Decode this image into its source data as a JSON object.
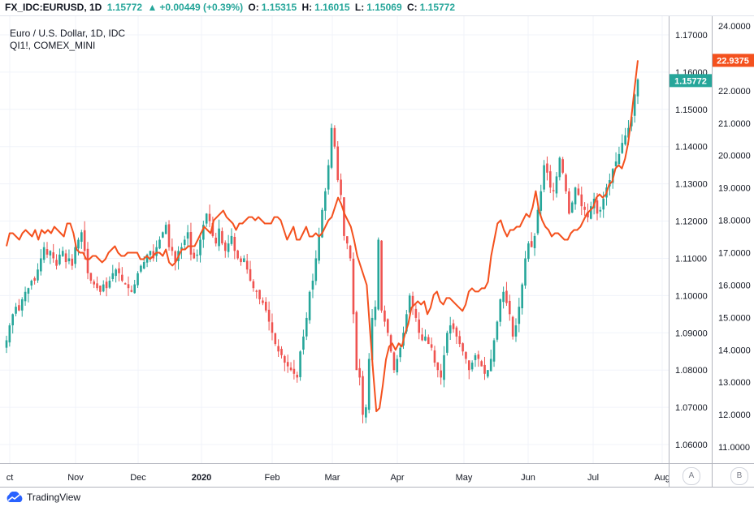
{
  "header": {
    "symbol": "FX_IDC:EURUSD, 1D",
    "last": "1.15772",
    "arrow": "▲",
    "change": "+0.00449 (+0.39%)",
    "o_label": "O:",
    "o_value": "1.15315",
    "h_label": "H:",
    "h_value": "1.16015",
    "l_label": "L:",
    "l_value": "1.15069",
    "c_label": "C:",
    "c_value": "1.15772"
  },
  "legend": {
    "line1": "Euro / U.S. Dollar, 1D, IDC",
    "line2": "QI1!, COMEX_MINI"
  },
  "footer": {
    "brand": "TradingView"
  },
  "scale_buttons": {
    "a": "A",
    "b": "B"
  },
  "colors": {
    "up": "#26a69a",
    "down": "#ef5350",
    "silver_line": "#f4511e",
    "eur_label_bg": "#26a69a",
    "silver_label_bg": "#f4511e",
    "grid": "#f0f3fa",
    "axis": "#b2b5be"
  },
  "chart_data": {
    "type": "candlestick",
    "x_axis": {
      "labels": [
        "ct",
        "Nov",
        "Dec",
        "2020",
        "Feb",
        "Mar",
        "Apr",
        "May",
        "Jun",
        "Jul",
        "Aug"
      ],
      "bold": [
        "2020"
      ]
    },
    "left_axis": {
      "name": "EURUSD",
      "range": [
        1.055,
        1.175
      ],
      "ticks": [
        "1.17000",
        "1.16000",
        "1.15000",
        "1.14000",
        "1.13000",
        "1.12000",
        "1.11000",
        "1.10000",
        "1.09000",
        "1.08000",
        "1.07000",
        "1.06000"
      ],
      "last_label": "1.15772"
    },
    "right_axis": {
      "name": "QI1!",
      "range": [
        10.5,
        24.3
      ],
      "ticks": [
        "24.0000",
        "23.0000",
        "22.0000",
        "21.0000",
        "20.0000",
        "19.0000",
        "18.0000",
        "17.0000",
        "16.0000",
        "15.0000",
        "14.0000",
        "13.0000",
        "12.0000",
        "11.0000"
      ],
      "last_label": "22.9375"
    },
    "eurusd_closes": [
      1.088,
      1.092,
      1.095,
      1.097,
      1.096,
      1.099,
      1.101,
      1.102,
      1.104,
      1.104,
      1.107,
      1.11,
      1.113,
      1.111,
      1.112,
      1.11,
      1.108,
      1.111,
      1.112,
      1.109,
      1.11,
      1.108,
      1.113,
      1.115,
      1.117,
      1.112,
      1.106,
      1.104,
      1.103,
      1.102,
      1.101,
      1.103,
      1.102,
      1.104,
      1.106,
      1.107,
      1.106,
      1.104,
      1.103,
      1.102,
      1.101,
      1.103,
      1.106,
      1.108,
      1.109,
      1.111,
      1.112,
      1.11,
      1.113,
      1.115,
      1.117,
      1.119,
      1.113,
      1.112,
      1.109,
      1.112,
      1.113,
      1.115,
      1.117,
      1.111,
      1.11,
      1.111,
      1.115,
      1.119,
      1.122,
      1.12,
      1.116,
      1.114,
      1.118,
      1.114,
      1.112,
      1.114,
      1.116,
      1.112,
      1.11,
      1.109,
      1.11,
      1.107,
      1.104,
      1.102,
      1.101,
      1.099,
      1.098,
      1.096,
      1.093,
      1.09,
      1.087,
      1.085,
      1.084,
      1.082,
      1.081,
      1.08,
      1.079,
      1.078,
      1.085,
      1.089,
      1.094,
      1.101,
      1.104,
      1.11,
      1.116,
      1.123,
      1.128,
      1.135,
      1.145,
      1.14,
      1.131,
      1.127,
      1.116,
      1.114,
      1.11,
      1.095,
      1.08,
      1.078,
      1.068,
      1.07,
      1.083,
      1.094,
      1.097,
      1.115,
      1.096,
      1.093,
      1.09,
      1.085,
      1.08,
      1.083,
      1.086,
      1.09,
      1.095,
      1.1,
      1.097,
      1.094,
      1.09,
      1.088,
      1.089,
      1.087,
      1.086,
      1.082,
      1.08,
      1.078,
      1.084,
      1.09,
      1.092,
      1.091,
      1.089,
      1.087,
      1.085,
      1.083,
      1.08,
      1.082,
      1.084,
      1.083,
      1.081,
      1.079,
      1.08,
      1.083,
      1.088,
      1.093,
      1.099,
      1.101,
      1.098,
      1.095,
      1.089,
      1.092,
      1.097,
      1.103,
      1.11,
      1.114,
      1.113,
      1.116,
      1.123,
      1.128,
      1.135,
      1.133,
      1.129,
      1.128,
      1.132,
      1.137,
      1.133,
      1.128,
      1.122,
      1.125,
      1.129,
      1.127,
      1.124,
      1.123,
      1.121,
      1.124,
      1.126,
      1.122,
      1.123,
      1.126,
      1.129,
      1.131,
      1.134,
      1.136,
      1.138,
      1.141,
      1.143,
      1.145,
      1.148,
      1.154,
      1.158
    ],
    "silver_closes": [
      17.2,
      17.6,
      17.6,
      17.5,
      17.4,
      17.6,
      17.7,
      17.6,
      17.5,
      17.7,
      17.4,
      17.7,
      17.6,
      17.7,
      17.6,
      17.8,
      17.7,
      17.6,
      17.5,
      17.9,
      17.9,
      17.6,
      17.1,
      17.0,
      17.0,
      16.8,
      16.8,
      16.9,
      16.9,
      16.8,
      16.7,
      16.8,
      17.0,
      17.1,
      17.2,
      17.0,
      16.9,
      16.9,
      17.0,
      17.0,
      17.0,
      17.0,
      16.8,
      16.8,
      16.9,
      16.8,
      16.9,
      17.0,
      17.0,
      16.9,
      17.1,
      16.7,
      16.6,
      16.7,
      16.9,
      17.1,
      17.1,
      17.2,
      17.2,
      17.2,
      17.4,
      17.6,
      17.8,
      17.7,
      17.6,
      18.0,
      18.1,
      18.2,
      18.3,
      18.1,
      18.0,
      17.9,
      17.7,
      17.9,
      17.9,
      18.0,
      18.1,
      18.1,
      18.0,
      18.1,
      18.0,
      17.9,
      17.9,
      17.9,
      18.1,
      18.1,
      18.0,
      17.7,
      17.4,
      17.6,
      17.8,
      17.4,
      17.4,
      17.6,
      17.8,
      17.5,
      17.5,
      17.6,
      17.5,
      17.6,
      17.8,
      18.0,
      18.1,
      18.4,
      18.7,
      18.5,
      18.2,
      18.0,
      17.8,
      17.4,
      16.9,
      16.6,
      16.3,
      16.0,
      14.6,
      13.3,
      12.1,
      12.2,
      12.9,
      13.7,
      14.1,
      14.2,
      14.0,
      14.2,
      14.1,
      14.5,
      14.8,
      15.3,
      15.4,
      15.5,
      15.4,
      15.5,
      15.1,
      15.3,
      15.7,
      15.8,
      15.5,
      15.4,
      15.6,
      15.6,
      15.5,
      15.4,
      15.3,
      15.2,
      15.4,
      15.8,
      15.9,
      15.8,
      15.8,
      15.9,
      15.9,
      16.1,
      16.9,
      17.4,
      17.9,
      18.0,
      17.7,
      17.5,
      17.7,
      17.7,
      17.8,
      17.8,
      18.0,
      18.2,
      18.1,
      18.4,
      18.9,
      18.3,
      18.0,
      17.8,
      17.7,
      17.5,
      17.6,
      17.6,
      17.5,
      17.4,
      17.4,
      17.6,
      17.7,
      17.7,
      17.8,
      18.0,
      18.2,
      18.3,
      18.4,
      18.7,
      18.8,
      18.7,
      18.8,
      19.1,
      19.2,
      19.6,
      19.7,
      19.6,
      19.9,
      20.4,
      21.2,
      22.1,
      22.9375
    ]
  }
}
